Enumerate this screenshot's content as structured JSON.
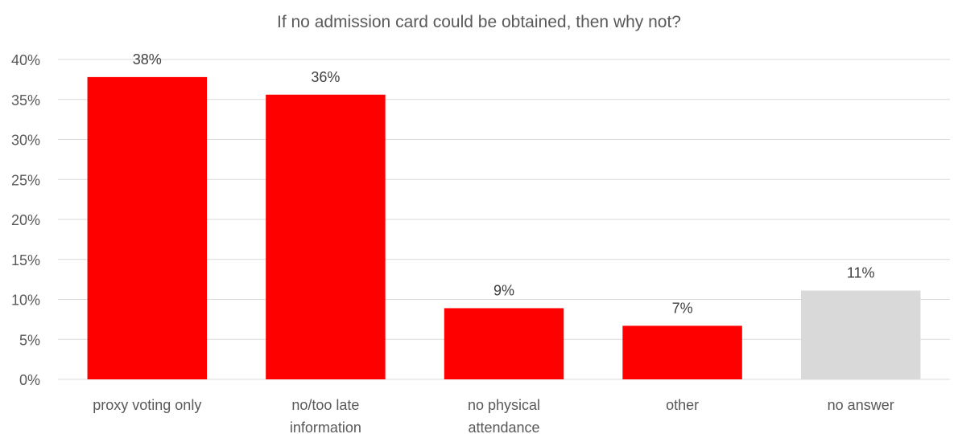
{
  "chart_data": {
    "type": "bar",
    "title": "If no admission card could be obtained, then why not?",
    "xlabel": "",
    "ylabel": "",
    "categories": [
      [
        "proxy voting only"
      ],
      [
        "no/too late",
        "information"
      ],
      [
        "no physical",
        "attendance"
      ],
      [
        "other"
      ],
      [
        "no answer"
      ]
    ],
    "values": [
      0.378,
      0.356,
      0.089,
      0.067,
      0.111
    ],
    "data_labels": [
      "38%",
      "36%",
      "9%",
      "7%",
      "11%"
    ],
    "bar_colors": [
      "#ff0000",
      "#ff0000",
      "#ff0000",
      "#ff0000",
      "#d9d9d9"
    ],
    "ylim": [
      0,
      0.4
    ],
    "yticks": [
      0,
      0.05,
      0.1,
      0.15,
      0.2,
      0.25,
      0.3,
      0.35,
      0.4
    ],
    "ytick_labels": [
      "0%",
      "5%",
      "10%",
      "15%",
      "20%",
      "25%",
      "30%",
      "35%",
      "40%"
    ],
    "grid": true,
    "legend": "none"
  }
}
